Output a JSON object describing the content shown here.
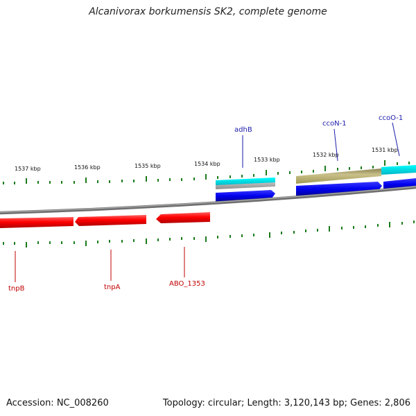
{
  "title": "Alcanivorax borkumensis SK2, complete genome",
  "footer": {
    "accession": "Accession: NC_008260",
    "summary": "Topology: circular; Length: 3,120,143 bp; Genes: 2,806"
  },
  "ruler": [
    "1537 kbp",
    "1536 kbp",
    "1535 kbp",
    "1534 kbp",
    "1533 kbp",
    "1532 kbp",
    "1531 kbp"
  ],
  "genes_top": [
    "adhB",
    "ccoN-1",
    "ccoO-1"
  ],
  "genes_bottom": [
    "tnpB",
    "tnpA",
    "ABO_1353"
  ],
  "colors": {
    "reverse_cds": "#ff0000",
    "forward_cds": "#0000ee",
    "rrna_cyan": "#00e5e5",
    "olive": "#a79f5a",
    "tick": "#1a7a1a",
    "backbone": "#808080",
    "top_label": "#1a1aaa",
    "bottom_label": "#c00000"
  }
}
